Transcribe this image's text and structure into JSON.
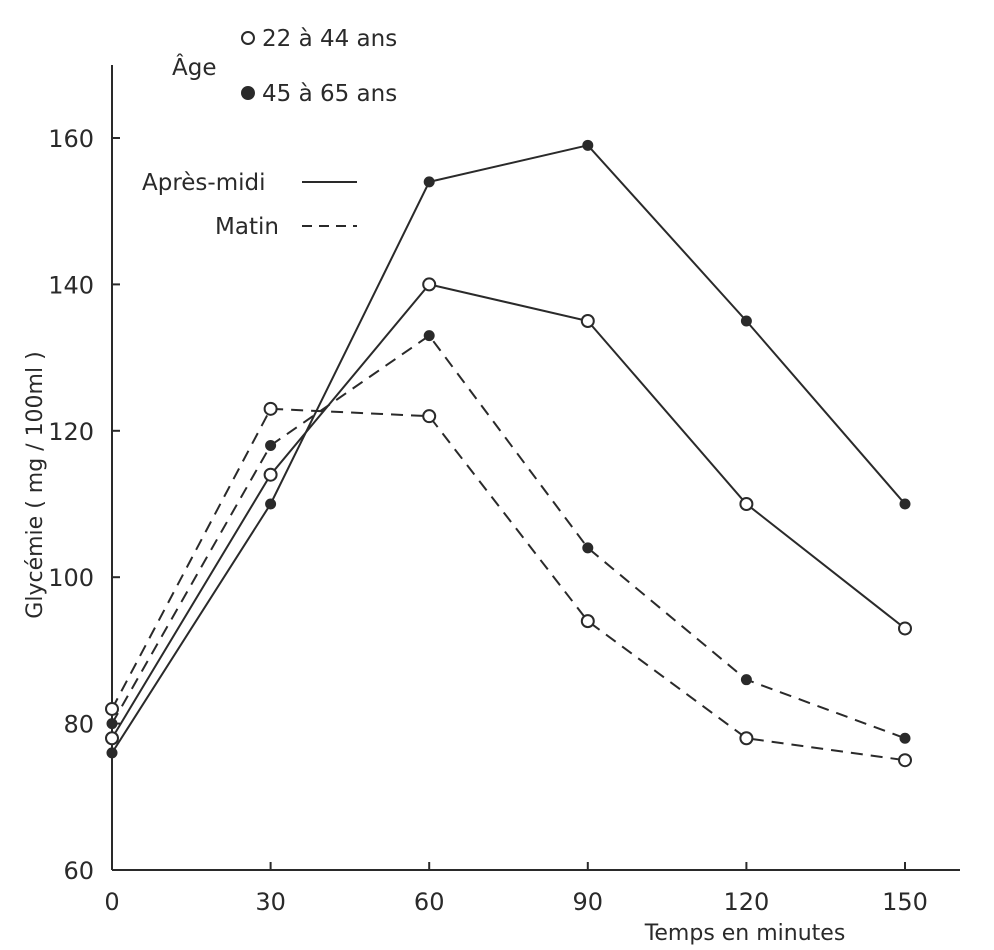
{
  "chart_data": {
    "type": "line",
    "xlabel": "Temps en minutes",
    "ylabel": "Glycémie ( mg / 100ml )",
    "x": [
      0,
      30,
      60,
      90,
      120,
      150
    ],
    "x_tick_labels": [
      "0",
      "30",
      "60",
      "90",
      "120",
      "150"
    ],
    "y_tick_values": [
      60,
      80,
      100,
      120,
      140,
      160
    ],
    "y_tick_labels": [
      "60",
      "80",
      "100",
      "120",
      "140",
      "160"
    ],
    "xlim": [
      0,
      160
    ],
    "ylim": [
      60,
      168
    ],
    "grid": false,
    "legend": {
      "age_title": "Âge",
      "age_items": [
        {
          "marker": "open",
          "label": "22 à 44 ans"
        },
        {
          "marker": "filled",
          "label": "45 à 65 ans"
        }
      ],
      "style_items": [
        {
          "dash": "solid",
          "label": "Après-midi"
        },
        {
          "dash": "dashed",
          "label": "Matin"
        }
      ]
    },
    "series": [
      {
        "age": "45 à 65 ans",
        "time": "Après-midi",
        "marker": "filled",
        "dash": "solid",
        "values": [
          76,
          110,
          154,
          159,
          135,
          110
        ]
      },
      {
        "age": "22 à 44 ans",
        "time": "Après-midi",
        "marker": "open",
        "dash": "solid",
        "values": [
          78,
          114,
          140,
          135,
          110,
          93
        ]
      },
      {
        "age": "45 à 65 ans",
        "time": "Matin",
        "marker": "filled",
        "dash": "dashed",
        "values": [
          80,
          118,
          133,
          104,
          86,
          78
        ]
      },
      {
        "age": "22 à 44 ans",
        "time": "Matin",
        "marker": "open",
        "dash": "dashed",
        "values": [
          82,
          123,
          122,
          94,
          78,
          75
        ]
      }
    ],
    "colors": {
      "ink": "#2a2a2a",
      "background": "#ffffff"
    }
  }
}
